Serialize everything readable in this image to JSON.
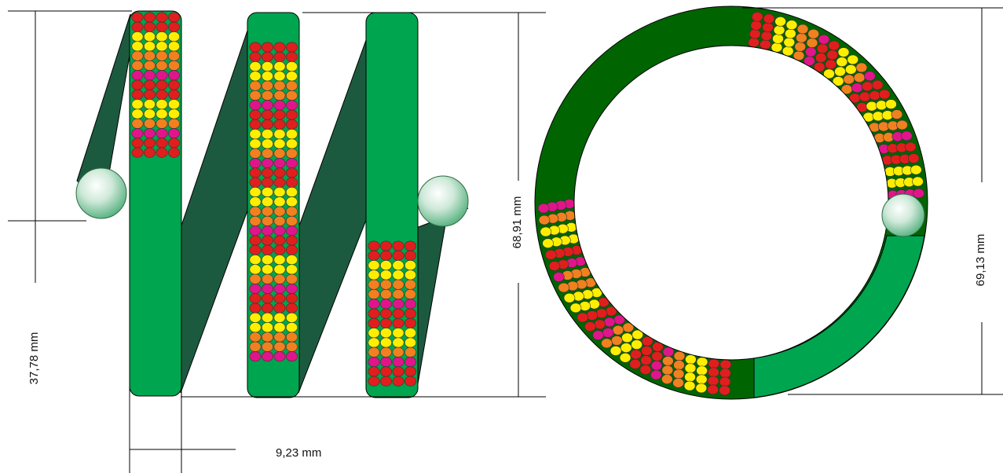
{
  "dimensions": {
    "height_37_78": "37,78 mm",
    "width_9_23": "9,23 mm",
    "height_68_91": "68,91 mm",
    "diameter_69_13": "69,13 mm"
  },
  "colors": {
    "background": "#ffffff",
    "tube_green": "#00a54f",
    "tube_dark_green": "#1c5a3f",
    "ring_dark_green": "#006400",
    "bead_red": "#e01e1e",
    "bead_yellow": "#ffee00",
    "bead_orange": "#f08020",
    "bead_magenta": "#e0158a",
    "dim_line": "#000000"
  },
  "bead_row_pattern": [
    "red",
    "red",
    "yellow",
    "yellow",
    "orange",
    "orange",
    "magenta",
    "red",
    "red",
    "yellow",
    "yellow",
    "orange",
    "magenta"
  ]
}
